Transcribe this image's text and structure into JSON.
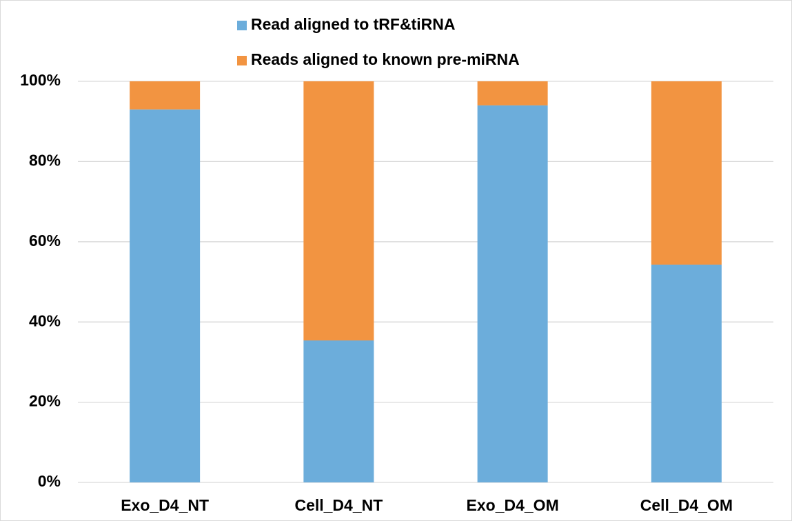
{
  "chart_data": {
    "type": "bar",
    "stacked": true,
    "categories": [
      "Exo_D4_NT",
      "Cell_D4_NT",
      "Exo_D4_OM",
      "Cell_D4_OM"
    ],
    "series": [
      {
        "name": "Read aligned to tRF&tiRNA",
        "color": "#6caddb",
        "values": [
          93,
          35.4,
          94,
          54.3
        ]
      },
      {
        "name": "Reads aligned to known pre-miRNA",
        "color": "#f29441",
        "values": [
          7,
          64.6,
          6,
          45.7
        ]
      }
    ],
    "ylim": [
      0,
      100
    ],
    "yticks": [
      {
        "value": 0,
        "label": "0%"
      },
      {
        "value": 20,
        "label": "20%"
      },
      {
        "value": 40,
        "label": "40%"
      },
      {
        "value": 60,
        "label": "60%"
      },
      {
        "value": 80,
        "label": "80%"
      },
      {
        "value": 100,
        "label": "100%"
      }
    ],
    "grid": true,
    "legend": "top"
  }
}
